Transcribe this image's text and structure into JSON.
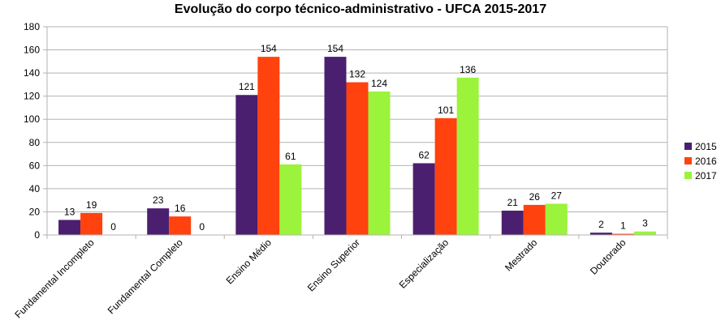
{
  "chart_data": {
    "type": "bar",
    "title": "Evolução do corpo técnico-administrativo - UFCA 2015-2017",
    "xlabel": "",
    "ylabel": "",
    "ylim": [
      0,
      180
    ],
    "yticks": [
      0,
      20,
      40,
      60,
      80,
      100,
      120,
      140,
      160,
      180
    ],
    "grid": true,
    "legend_position": "right",
    "categories": [
      "Fundamental Incompleto",
      "Fundamental Completo",
      "Ensino Médio",
      "Ensino Superior",
      "Especialização",
      "Mestrado",
      "Doutorado"
    ],
    "series": [
      {
        "name": "2015",
        "color": "#4b1f6f",
        "values": [
          13,
          23,
          121,
          154,
          62,
          21,
          2
        ]
      },
      {
        "name": "2016",
        "color": "#ff420e",
        "values": [
          19,
          16,
          154,
          132,
          101,
          26,
          1
        ]
      },
      {
        "name": "2017",
        "color": "#9bf33b",
        "values": [
          0,
          0,
          61,
          124,
          136,
          27,
          3
        ]
      }
    ]
  }
}
